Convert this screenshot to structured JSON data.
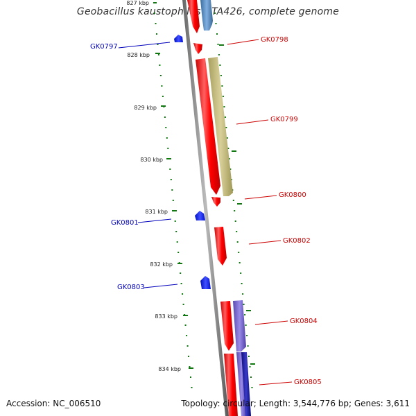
{
  "title": "Geobacillus kaustophilus HTA426, complete genome",
  "footer": {
    "accession": "Accession: NC_006510",
    "summary": "Topology: circular; Length: 3,544,776 bp; Genes: 3,611"
  },
  "colors": {
    "cds": "#ff0000",
    "cds_highlight": "#ff8080",
    "tick": "#117711",
    "backbone": "#888888",
    "label_forward": "#cc0000",
    "label_reverse": "#0000bb",
    "feature_reverse": "#0022ee",
    "khaki": "#c8c080",
    "steelblue": "#5a8fc0",
    "slateblue": "#7a6ad0",
    "navy": "#1a1aa0"
  },
  "scale": {
    "labels": [
      {
        "text": "827 kbp",
        "kbp": 827
      },
      {
        "text": "828 kbp",
        "kbp": 828
      },
      {
        "text": "829 kbp",
        "kbp": 829
      },
      {
        "text": "830 kbp",
        "kbp": 830
      },
      {
        "text": "831 kbp",
        "kbp": 831
      },
      {
        "text": "832 kbp",
        "kbp": 832
      },
      {
        "text": "833 kbp",
        "kbp": 833
      },
      {
        "text": "834 kbp",
        "kbp": 834
      }
    ]
  },
  "genes": [
    {
      "label": "GK0797",
      "strand": "reverse",
      "start_kbp": 827.82,
      "end_kbp": 827.86
    },
    {
      "label": "GK0798",
      "strand": "forward",
      "start_kbp": 827.78,
      "end_kbp": 827.94
    },
    {
      "label": "GK0799",
      "strand": "forward",
      "start_kbp": 828.05,
      "end_kbp": 830.58
    },
    {
      "label": "GK0800",
      "strand": "forward",
      "start_kbp": 830.6,
      "end_kbp": 830.79
    },
    {
      "label": "GK0801",
      "strand": "reverse",
      "start_kbp": 831.01,
      "end_kbp": 831.09
    },
    {
      "label": "GK0802",
      "strand": "forward",
      "start_kbp": 831.31,
      "end_kbp": 832.07
    },
    {
      "label": "GK0803",
      "strand": "reverse",
      "start_kbp": 832.25,
      "end_kbp": 832.4
    },
    {
      "label": "GK0804",
      "strand": "forward",
      "start_kbp": 832.72,
      "end_kbp": 834.0
    },
    {
      "label": "GK0805",
      "strand": "forward",
      "start_kbp": 834.05,
      "end_kbp": 834.6
    }
  ]
}
